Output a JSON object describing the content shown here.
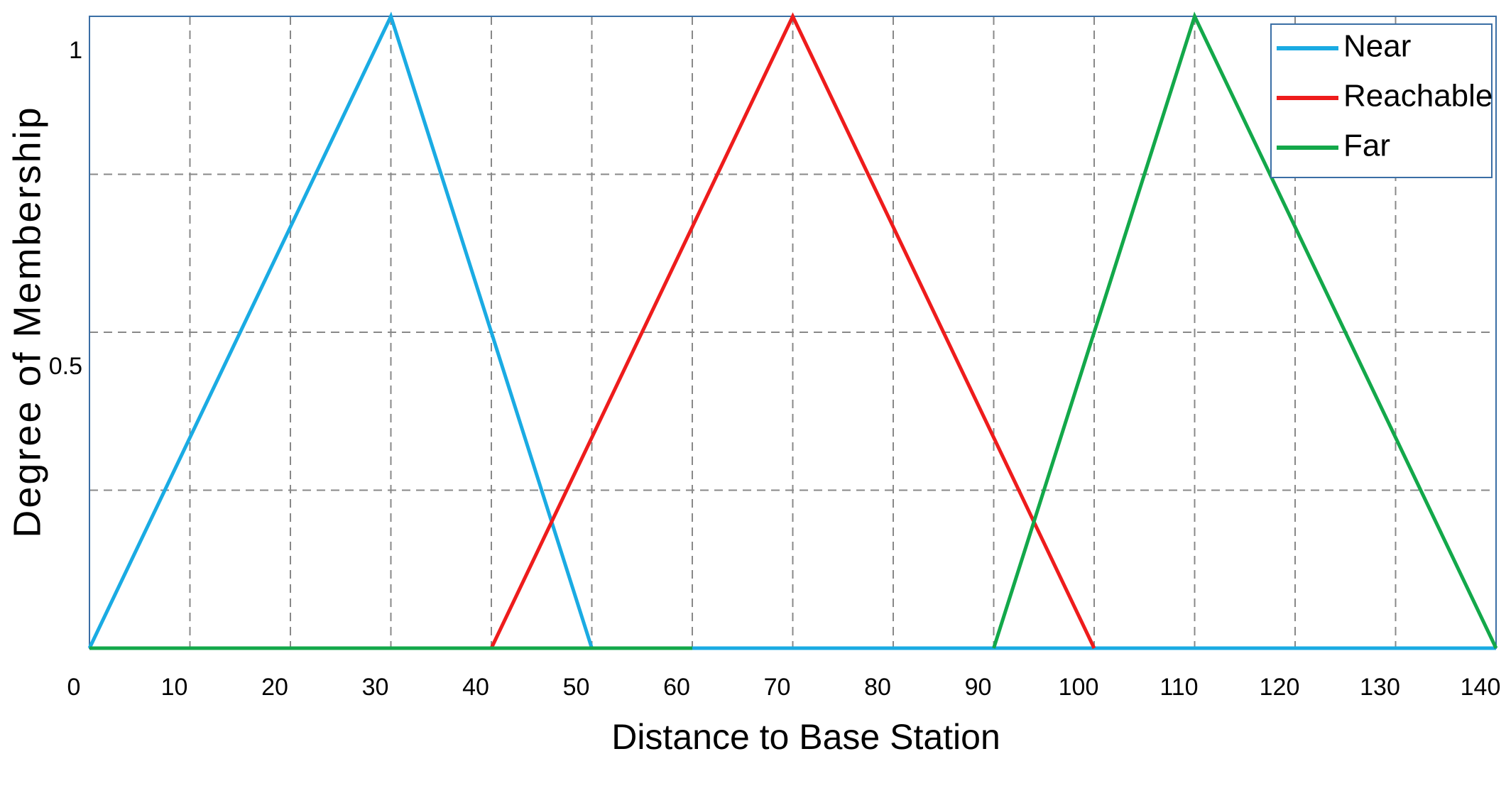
{
  "chart_data": {
    "type": "line",
    "x_label": "Distance to Base Station",
    "y_label": "Degree of Membership",
    "xlim": [
      0,
      140
    ],
    "xticks": [
      0,
      10,
      20,
      30,
      40,
      50,
      60,
      70,
      80,
      90,
      100,
      110,
      120,
      130,
      140
    ],
    "ylim": [
      0,
      1
    ],
    "yticks": [
      0.5,
      1
    ],
    "ygrid_lines": [
      0.25,
      0.5,
      0.75
    ],
    "grid": true,
    "legend": "upper right",
    "series": [
      {
        "name": "Near",
        "color": "#1aabe3",
        "x": [
          0,
          30,
          50,
          60,
          60,
          140
        ],
        "values": [
          0,
          1,
          0,
          null,
          0,
          0
        ]
      },
      {
        "name": "Reachable",
        "color": "#ee1c1c",
        "x": [
          40,
          70,
          100
        ],
        "values": [
          0,
          1,
          0
        ]
      },
      {
        "name": "Far",
        "color": "#13a84a",
        "x": [
          0,
          60,
          60,
          90,
          110,
          140
        ],
        "values": [
          0,
          0,
          null,
          0,
          1,
          0
        ]
      }
    ]
  }
}
